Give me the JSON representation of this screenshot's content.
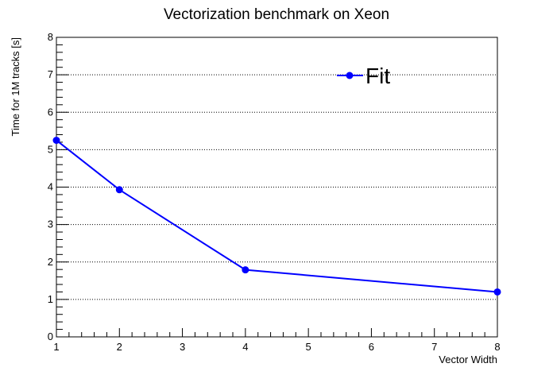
{
  "chart_data": {
    "type": "line",
    "title": "Vectorization benchmark on Xeon",
    "xlabel": "Vector Width",
    "ylabel": "Time for 1M tracks [s]",
    "xlim": [
      1,
      8
    ],
    "ylim": [
      0,
      8
    ],
    "x_ticks": [
      "1",
      "2",
      "3",
      "4",
      "5",
      "6",
      "7",
      "8"
    ],
    "y_ticks": [
      "0",
      "1",
      "2",
      "3",
      "4",
      "5",
      "6",
      "7",
      "8"
    ],
    "grid_y": true,
    "grid_x": false,
    "legend_position": "top-right",
    "series": [
      {
        "name": "Fit",
        "color": "#0000ff",
        "x": [
          1,
          2,
          4,
          8
        ],
        "y": [
          5.25,
          3.93,
          1.79,
          1.2
        ]
      }
    ]
  }
}
